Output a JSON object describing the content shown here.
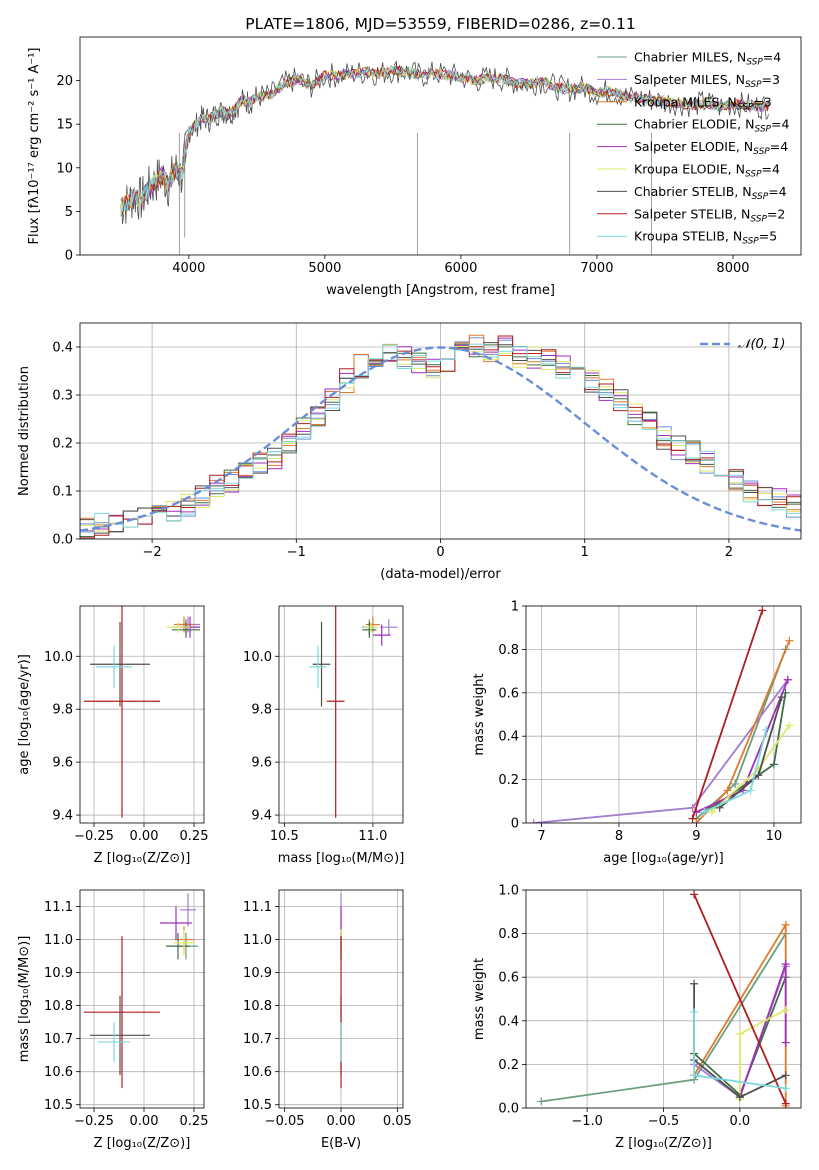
{
  "colors": {
    "Chabrier MILES": "#6a9e7f",
    "Salpeter MILES": "#a37bd0",
    "Kroupa MILES": "#e07a2b",
    "Chabrier ELODIE": "#3f6f43",
    "Salpeter ELODIE": "#a22ebc",
    "Kroupa ELODIE": "#e0e86a",
    "Chabrier STELIB": "#4f4f4f",
    "Salpeter STELIB": "#b01e1e",
    "Kroupa STELIB": "#7fd8dc",
    "model_hist": [
      "#6a8fd8",
      "#e07a2b",
      "#3f6f43",
      "#a22ebc",
      "#e0e86a",
      "#4f4f4f",
      "#b01e1e",
      "#7fd8dc"
    ],
    "normal_curve": "#6a8fd8"
  },
  "chart_data": [
    {
      "id": "spectrum",
      "type": "line",
      "title": "PLATE=1806, MJD=53559, FIBERID=0286, z=0.11",
      "xlabel": "wavelength [Angstrom, rest frame]",
      "ylabel": "Flux [fλ10⁻¹⁷ erg cm⁻² s⁻¹ A⁻¹]",
      "xlim": [
        3200,
        8500
      ],
      "ylim": [
        0,
        25
      ],
      "xticks": [
        4000,
        5000,
        6000,
        7000,
        8000
      ],
      "yticks": [
        0,
        5,
        10,
        15,
        20
      ],
      "grid": false,
      "legend_position": "right",
      "spectrum_x": [
        3500,
        3550,
        3600,
        3650,
        3700,
        3750,
        3800,
        3850,
        3900,
        3950,
        4000,
        4050,
        4100,
        4150,
        4200,
        4250,
        4300,
        4350,
        4400,
        4450,
        4500,
        4600,
        4700,
        4800,
        4900,
        5000,
        5100,
        5200,
        5300,
        5400,
        5500,
        5600,
        5700,
        5800,
        5900,
        6000,
        6100,
        6200,
        6300,
        6400,
        6500,
        6600,
        6700,
        6800,
        6900,
        7000,
        7100,
        7200,
        7300,
        7400,
        7500,
        7600,
        7700,
        7800,
        7900,
        8000,
        8100,
        8200,
        8270
      ],
      "spectrum_y": [
        5.5,
        6.0,
        6.8,
        6.3,
        7.5,
        8.3,
        9.2,
        8.0,
        9.8,
        9.0,
        14.2,
        14.8,
        15.8,
        15.5,
        16.2,
        16.5,
        16.2,
        17.0,
        17.8,
        17.5,
        18.2,
        18.3,
        19.6,
        20.2,
        19.4,
        20.6,
        20.6,
        20.8,
        21.0,
        20.8,
        21.2,
        21.0,
        20.6,
        20.8,
        20.7,
        20.4,
        20.0,
        20.3,
        20.2,
        19.8,
        19.6,
        20.0,
        19.2,
        19.0,
        19.2,
        18.6,
        18.8,
        18.2,
        18.0,
        17.8,
        17.6,
        17.4,
        17.2,
        17.5,
        17.0,
        17.3,
        17.2,
        17.0,
        17.1
      ],
      "series": [
        {
          "name": "Chabrier MILES, N_SSP=4"
        },
        {
          "name": "Salpeter MILES, N_SSP=3"
        },
        {
          "name": "Kroupa MILES, N_SSP=3"
        },
        {
          "name": "Chabrier ELODIE, N_SSP=4"
        },
        {
          "name": "Salpeter ELODIE, N_SSP=4"
        },
        {
          "name": "Kroupa ELODIE, N_SSP=4"
        },
        {
          "name": "Chabrier STELIB, N_SSP=4"
        },
        {
          "name": "Salpeter STELIB, N_SSP=2"
        },
        {
          "name": "Kroupa STELIB, N_SSP=5"
        }
      ],
      "legend_entries": [
        {
          "base": "Chabrier MILES, N",
          "sub": "SSP",
          "tail": "=4",
          "color_key": "Chabrier MILES"
        },
        {
          "base": "Salpeter MILES, N",
          "sub": "SSP",
          "tail": "=3",
          "color_key": "Salpeter MILES"
        },
        {
          "base": "Kroupa MILES, N",
          "sub": "SSP",
          "tail": "=3",
          "color_key": "Kroupa MILES"
        },
        {
          "base": "Chabrier ELODIE, N",
          "sub": "SSP",
          "tail": "=4",
          "color_key": "Chabrier ELODIE"
        },
        {
          "base": "Salpeter ELODIE, N",
          "sub": "SSP",
          "tail": "=4",
          "color_key": "Salpeter ELODIE"
        },
        {
          "base": "Kroupa ELODIE, N",
          "sub": "SSP",
          "tail": "=4",
          "color_key": "Kroupa ELODIE"
        },
        {
          "base": "Chabrier STELIB, N",
          "sub": "SSP",
          "tail": "=4",
          "color_key": "Chabrier STELIB"
        },
        {
          "base": "Salpeter STELIB, N",
          "sub": "SSP",
          "tail": "=2",
          "color_key": "Salpeter STELIB"
        },
        {
          "base": "Kroupa STELIB, N",
          "sub": "SSP",
          "tail": "=5",
          "color_key": "Kroupa STELIB"
        }
      ]
    },
    {
      "id": "residuals",
      "type": "bar",
      "xlabel": "(data-model)/error",
      "ylabel": "Normed distribution",
      "xlim": [
        -2.5,
        2.5
      ],
      "ylim": [
        0,
        0.45
      ],
      "xticks": [
        -2,
        -1,
        0,
        1,
        2
      ],
      "yticks": [
        0.0,
        0.1,
        0.2,
        0.3,
        0.4
      ],
      "grid": true,
      "legend_position": "top-right",
      "legend_label": "𝒩(0, 1)",
      "bin_edges_step": 0.1,
      "hist_sample": [
        0.02,
        0.03,
        0.03,
        0.04,
        0.05,
        0.05,
        0.06,
        0.07,
        0.09,
        0.11,
        0.12,
        0.14,
        0.16,
        0.17,
        0.2,
        0.23,
        0.26,
        0.29,
        0.33,
        0.36,
        0.38,
        0.39,
        0.38,
        0.37,
        0.36,
        0.37,
        0.39,
        0.4,
        0.39,
        0.4,
        0.38,
        0.38,
        0.37,
        0.36,
        0.35,
        0.33,
        0.31,
        0.29,
        0.26,
        0.24,
        0.21,
        0.19,
        0.18,
        0.16,
        0.14,
        0.12,
        0.1,
        0.09,
        0.08,
        0.07
      ]
    },
    {
      "id": "age-vs-Z",
      "type": "scatter",
      "xlabel": "Z [log₁₀(Z/Z⊙)]",
      "ylabel": "age  [log₁₀(age/yr)]",
      "xlim": [
        -0.32,
        0.3
      ],
      "ylim": [
        9.37,
        10.19
      ],
      "xticks": [
        -0.25,
        0.0,
        0.25
      ],
      "yticks": [
        9.4,
        9.6,
        9.8,
        10.0
      ],
      "xticklabels": [
        "−0.25",
        "0.00",
        "0.25"
      ],
      "yticklabels": [
        "9.4",
        "9.6",
        "9.8",
        "10.0"
      ],
      "grid": true,
      "points": [
        {
          "color_key": "Chabrier MILES",
          "x": 0.21,
          "y": 10.11,
          "xerr": 0.07,
          "yerr": 0.03
        },
        {
          "color_key": "Salpeter MILES",
          "x": 0.22,
          "y": 10.12,
          "xerr": 0.06,
          "yerr": 0.03
        },
        {
          "color_key": "Kroupa MILES",
          "x": 0.2,
          "y": 10.12,
          "xerr": 0.05,
          "yerr": 0.03
        },
        {
          "color_key": "Chabrier ELODIE",
          "x": 0.21,
          "y": 10.1,
          "xerr": 0.07,
          "yerr": 0.03
        },
        {
          "color_key": "Salpeter ELODIE",
          "x": 0.23,
          "y": 10.11,
          "xerr": 0.05,
          "yerr": 0.04
        },
        {
          "color_key": "Kroupa ELODIE",
          "x": 0.17,
          "y": 10.11,
          "xerr": 0.06,
          "yerr": 0.02
        },
        {
          "color_key": "Chabrier STELIB",
          "x": -0.12,
          "y": 9.97,
          "xerr": 0.15,
          "yerr": 0.16
        },
        {
          "color_key": "Salpeter STELIB",
          "x": -0.11,
          "y": 9.83,
          "xerr": 0.19,
          "yerr": 0.44
        },
        {
          "color_key": "Kroupa STELIB",
          "x": -0.15,
          "y": 9.96,
          "xerr": 0.09,
          "yerr": 0.08
        }
      ]
    },
    {
      "id": "age-vs-mass",
      "type": "scatter",
      "xlabel": "mass [log₁₀(M/M⊙)]",
      "ylabel": "",
      "xlim": [
        10.47,
        11.17
      ],
      "ylim": [
        9.37,
        10.19
      ],
      "xticks": [
        10.5,
        11.0
      ],
      "yticks": [
        9.4,
        9.6,
        9.8,
        10.0
      ],
      "xticklabels": [
        "10.5",
        "11.0"
      ],
      "yticklabels": [
        "9.4",
        "9.6",
        "9.8",
        "10.0"
      ],
      "grid": true,
      "points": [
        {
          "color_key": "Chabrier MILES",
          "x": 10.98,
          "y": 10.11,
          "xerr": 0.04,
          "yerr": 0.03
        },
        {
          "color_key": "Salpeter MILES",
          "x": 11.09,
          "y": 10.11,
          "xerr": 0.05,
          "yerr": 0.03
        },
        {
          "color_key": "Kroupa MILES",
          "x": 11.0,
          "y": 10.12,
          "xerr": 0.04,
          "yerr": 0.03
        },
        {
          "color_key": "Chabrier ELODIE",
          "x": 10.98,
          "y": 10.1,
          "xerr": 0.04,
          "yerr": 0.03
        },
        {
          "color_key": "Salpeter ELODIE",
          "x": 11.05,
          "y": 10.08,
          "xerr": 0.05,
          "yerr": 0.04
        },
        {
          "color_key": "Kroupa ELODIE",
          "x": 10.99,
          "y": 10.11,
          "xerr": 0.04,
          "yerr": 0.02
        },
        {
          "color_key": "Chabrier STELIB",
          "x": 10.71,
          "y": 9.97,
          "xerr": 0.05,
          "yerr": 0.16
        },
        {
          "color_key": "Salpeter STELIB",
          "x": 10.79,
          "y": 9.83,
          "xerr": 0.05,
          "yerr": 0.44
        },
        {
          "color_key": "Kroupa STELIB",
          "x": 10.69,
          "y": 9.96,
          "xerr": 0.05,
          "yerr": 0.08
        }
      ]
    },
    {
      "id": "weight-vs-age",
      "type": "line",
      "xlabel": "age  [log₁₀(age/yr)]",
      "ylabel": "mass weight",
      "xlim": [
        6.8,
        10.35
      ],
      "ylim": [
        0,
        1.0
      ],
      "xticks": [
        7,
        8,
        9,
        10
      ],
      "yticks": [
        0.0,
        0.2,
        0.4,
        0.6,
        0.8,
        1.0
      ],
      "grid": true,
      "series": [
        {
          "color_key": "Chabrier MILES",
          "x": [
            9.0,
            9.5,
            10.15
          ],
          "y": [
            0.02,
            0.18,
            0.8
          ]
        },
        {
          "color_key": "Salpeter MILES",
          "x": [
            6.9,
            8.95,
            10.18
          ],
          "y": [
            0.0,
            0.07,
            0.66
          ]
        },
        {
          "color_key": "Kroupa MILES",
          "x": [
            9.0,
            9.4,
            10.2
          ],
          "y": [
            0.0,
            0.15,
            0.84
          ]
        },
        {
          "color_key": "Chabrier ELODIE",
          "x": [
            9.2,
            10.0,
            10.15
          ],
          "y": [
            0.07,
            0.27,
            0.6
          ]
        },
        {
          "color_key": "Salpeter ELODIE",
          "x": [
            9.0,
            9.6,
            10.18
          ],
          "y": [
            0.05,
            0.15,
            0.66
          ]
        },
        {
          "color_key": "Kroupa ELODIE",
          "x": [
            9.2,
            9.8,
            10.2
          ],
          "y": [
            0.05,
            0.25,
            0.45
          ]
        },
        {
          "color_key": "Chabrier STELIB",
          "x": [
            9.3,
            9.8,
            10.1
          ],
          "y": [
            0.07,
            0.22,
            0.58
          ]
        },
        {
          "color_key": "Salpeter STELIB",
          "x": [
            8.95,
            9.85
          ],
          "y": [
            0.02,
            0.98
          ]
        },
        {
          "color_key": "Kroupa STELIB",
          "x": [
            9.1,
            9.7,
            9.9
          ],
          "y": [
            0.05,
            0.15,
            0.43
          ]
        }
      ]
    },
    {
      "id": "mass-vs-Z",
      "type": "scatter",
      "xlabel": "Z [log₁₀(Z/Z⊙)]",
      "ylabel": "mass [log₁₀(M/M⊙)]",
      "xlim": [
        -0.32,
        0.3
      ],
      "ylim": [
        10.49,
        11.15
      ],
      "xticks": [
        -0.25,
        0.0,
        0.25
      ],
      "yticks": [
        10.5,
        10.6,
        10.7,
        10.8,
        10.9,
        11.0,
        11.1
      ],
      "xticklabels": [
        "−0.25",
        "0.00",
        "0.25"
      ],
      "yticklabels": [
        "10.5",
        "10.6",
        "10.7",
        "10.8",
        "10.9",
        "11.0",
        "11.1"
      ],
      "grid": true,
      "points": [
        {
          "color_key": "Chabrier MILES",
          "x": 0.21,
          "y": 10.98,
          "xerr": 0.06,
          "yerr": 0.04
        },
        {
          "color_key": "Salpeter MILES",
          "x": 0.22,
          "y": 11.09,
          "xerr": 0.04,
          "yerr": 0.05
        },
        {
          "color_key": "Kroupa MILES",
          "x": 0.2,
          "y": 11.0,
          "xerr": 0.05,
          "yerr": 0.04
        },
        {
          "color_key": "Chabrier ELODIE",
          "x": 0.17,
          "y": 10.98,
          "xerr": 0.06,
          "yerr": 0.04
        },
        {
          "color_key": "Salpeter ELODIE",
          "x": 0.16,
          "y": 11.05,
          "xerr": 0.08,
          "yerr": 0.05
        },
        {
          "color_key": "Kroupa ELODIE",
          "x": 0.2,
          "y": 10.99,
          "xerr": 0.05,
          "yerr": 0.04
        },
        {
          "color_key": "Chabrier STELIB",
          "x": -0.12,
          "y": 10.71,
          "xerr": 0.15,
          "yerr": 0.12
        },
        {
          "color_key": "Salpeter STELIB",
          "x": -0.11,
          "y": 10.78,
          "xerr": 0.19,
          "yerr": 0.23
        },
        {
          "color_key": "Kroupa STELIB",
          "x": -0.15,
          "y": 10.69,
          "xerr": 0.08,
          "yerr": 0.06
        }
      ]
    },
    {
      "id": "mass-vs-EBV",
      "type": "scatter",
      "xlabel": "E(B-V)",
      "ylabel": "",
      "xlim": [
        -0.055,
        0.055
      ],
      "ylim": [
        10.49,
        11.15
      ],
      "xticks": [
        -0.05,
        0.0,
        0.05
      ],
      "yticks": [
        10.5,
        10.6,
        10.7,
        10.8,
        10.9,
        11.0,
        11.1
      ],
      "xticklabels": [
        "−0.05",
        "0.00",
        "0.05"
      ],
      "yticklabels": [
        "10.5",
        "10.6",
        "10.7",
        "10.8",
        "10.9",
        "11.0",
        "11.1"
      ],
      "grid": true,
      "points": [
        {
          "color_key": "Chabrier MILES",
          "x": 0.0,
          "y": 10.98,
          "xerr": 0.0,
          "yerr": 0.04
        },
        {
          "color_key": "Salpeter MILES",
          "x": 0.0,
          "y": 11.09,
          "xerr": 0.0,
          "yerr": 0.05
        },
        {
          "color_key": "Kroupa MILES",
          "x": 0.0,
          "y": 11.0,
          "xerr": 0.0,
          "yerr": 0.04
        },
        {
          "color_key": "Chabrier ELODIE",
          "x": 0.0,
          "y": 10.98,
          "xerr": 0.0,
          "yerr": 0.04
        },
        {
          "color_key": "Salpeter ELODIE",
          "x": 0.0,
          "y": 11.05,
          "xerr": 0.0,
          "yerr": 0.05
        },
        {
          "color_key": "Kroupa ELODIE",
          "x": 0.0,
          "y": 10.99,
          "xerr": 0.0,
          "yerr": 0.04
        },
        {
          "color_key": "Chabrier STELIB",
          "x": 0.0,
          "y": 10.71,
          "xerr": 0.0,
          "yerr": 0.12
        },
        {
          "color_key": "Salpeter STELIB",
          "x": 0.0,
          "y": 10.78,
          "xerr": 0.0,
          "yerr": 0.23
        },
        {
          "color_key": "Kroupa STELIB",
          "x": 0.0,
          "y": 10.69,
          "xerr": 0.0,
          "yerr": 0.06
        }
      ]
    },
    {
      "id": "weight-vs-Z",
      "type": "line",
      "xlabel": "Z [log₁₀(Z/Z⊙)]",
      "ylabel": "mass weight",
      "xlim": [
        -1.4,
        0.4
      ],
      "ylim": [
        0,
        1.0
      ],
      "xticks": [
        -1.0,
        -0.5,
        0.0
      ],
      "yticks": [
        0.0,
        0.2,
        0.4,
        0.6,
        0.8,
        1.0
      ],
      "xticklabels": [
        "−1.0",
        "−0.5",
        "0.0"
      ],
      "yticklabels": [
        "0.0",
        "0.2",
        "0.4",
        "0.6",
        "0.8",
        "1.0"
      ],
      "grid": true,
      "series": [
        {
          "color_key": "Chabrier MILES",
          "x": [
            -1.3,
            -0.3,
            0.3
          ],
          "y": [
            0.03,
            0.13,
            0.8
          ]
        },
        {
          "color_key": "Salpeter MILES",
          "x": [
            -0.3,
            0.0,
            0.3
          ],
          "y": [
            0.2,
            0.05,
            0.65
          ]
        },
        {
          "color_key": "Kroupa MILES",
          "x": [
            -0.3,
            0.3,
            0.3
          ],
          "y": [
            0.15,
            0.84,
            0.01
          ]
        },
        {
          "color_key": "Chabrier ELODIE",
          "x": [
            -0.3,
            0.0,
            0.3
          ],
          "y": [
            0.25,
            0.06,
            0.6
          ]
        },
        {
          "color_key": "Salpeter ELODIE",
          "x": [
            0.0,
            0.3,
            0.3
          ],
          "y": [
            0.05,
            0.66,
            0.3
          ]
        },
        {
          "color_key": "Kroupa ELODIE",
          "x": [
            0.0,
            0.0,
            0.3
          ],
          "y": [
            0.04,
            0.34,
            0.45
          ]
        },
        {
          "color_key": "Chabrier STELIB",
          "x": [
            -0.3,
            -0.3,
            0.0,
            0.3
          ],
          "y": [
            0.57,
            0.22,
            0.05,
            0.15
          ]
        },
        {
          "color_key": "Salpeter STELIB",
          "x": [
            -0.3,
            0.3
          ],
          "y": [
            0.98,
            0.02
          ]
        },
        {
          "color_key": "Kroupa STELIB",
          "x": [
            -0.3,
            -0.3,
            0.3
          ],
          "y": [
            0.44,
            0.15,
            0.09
          ]
        }
      ]
    }
  ]
}
